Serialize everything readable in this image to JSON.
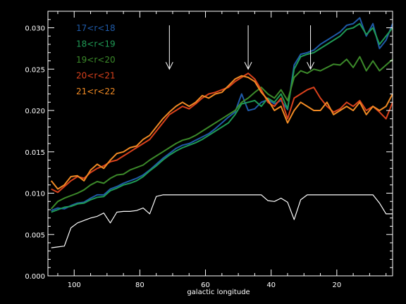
{
  "chart_data": {
    "type": "line",
    "title": "",
    "xlabel": "galactic longitude",
    "ylabel": "",
    "xlim": [
      108,
      3
    ],
    "ylim": [
      0.0,
      0.032
    ],
    "x_ticks": [
      100,
      80,
      60,
      40,
      20
    ],
    "x_tick_labels": [
      "100",
      "80",
      "60",
      "40",
      "20"
    ],
    "y_ticks": [
      0.0,
      0.005,
      0.01,
      0.015,
      0.02,
      0.025,
      0.03
    ],
    "y_tick_labels": [
      "0.000",
      "0.005",
      "0.010",
      "0.015",
      "0.020",
      "0.025",
      "0.030"
    ],
    "grid": false,
    "legend_position": "top-left",
    "background": "#000000",
    "foreground": "#ffffff",
    "arrows_at_x": [
      71,
      47,
      28
    ],
    "arrows_y_range": [
      0.0303,
      0.025
    ],
    "x": [
      107,
      105,
      103,
      101,
      99,
      97,
      95,
      93,
      91,
      89,
      87,
      85,
      83,
      81,
      79,
      77,
      75,
      73,
      71,
      69,
      67,
      65,
      63,
      61,
      59,
      57,
      55,
      53,
      51,
      49,
      47,
      45,
      43,
      41,
      39,
      37,
      35,
      33,
      31,
      29,
      27,
      25,
      23,
      21,
      19,
      17,
      15,
      13,
      11,
      9,
      7,
      5,
      3
    ],
    "series": [
      {
        "name": "17<r<18",
        "color": "#1f5aa8",
        "values": [
          0.0079,
          0.0082,
          0.0081,
          0.0085,
          0.0088,
          0.0089,
          0.0094,
          0.0098,
          0.0098,
          0.0105,
          0.0108,
          0.0112,
          0.0115,
          0.0118,
          0.0122,
          0.0128,
          0.0135,
          0.0142,
          0.0148,
          0.0154,
          0.0158,
          0.016,
          0.0164,
          0.0168,
          0.0172,
          0.0178,
          0.0185,
          0.0192,
          0.0198,
          0.022,
          0.02,
          0.0202,
          0.021,
          0.0213,
          0.0208,
          0.0212,
          0.0201,
          0.0255,
          0.0268,
          0.027,
          0.0273,
          0.028,
          0.0285,
          0.029,
          0.0295,
          0.0303,
          0.0305,
          0.0312,
          0.029,
          0.0305,
          0.0275,
          0.0285,
          0.0305
        ]
      },
      {
        "name": "18<r<19",
        "color": "#1f9a55",
        "values": [
          0.0077,
          0.008,
          0.0083,
          0.0084,
          0.0087,
          0.0088,
          0.0092,
          0.0095,
          0.0096,
          0.0103,
          0.0106,
          0.011,
          0.0112,
          0.0115,
          0.012,
          0.0127,
          0.0133,
          0.014,
          0.0146,
          0.0151,
          0.0155,
          0.0158,
          0.0161,
          0.0165,
          0.017,
          0.0175,
          0.018,
          0.0185,
          0.0195,
          0.0208,
          0.021,
          0.0212,
          0.0205,
          0.0215,
          0.021,
          0.022,
          0.0202,
          0.025,
          0.0265,
          0.0268,
          0.027,
          0.0275,
          0.028,
          0.0285,
          0.029,
          0.0298,
          0.03,
          0.0305,
          0.0292,
          0.03,
          0.028,
          0.029,
          0.03
        ]
      },
      {
        "name": "19<r<20",
        "color": "#3c8a2a",
        "values": [
          0.0081,
          0.009,
          0.0094,
          0.0097,
          0.01,
          0.0104,
          0.011,
          0.0114,
          0.0112,
          0.0118,
          0.0122,
          0.0123,
          0.0128,
          0.0131,
          0.0134,
          0.014,
          0.0145,
          0.015,
          0.0155,
          0.016,
          0.0164,
          0.0166,
          0.017,
          0.0175,
          0.018,
          0.0185,
          0.019,
          0.0195,
          0.02,
          0.021,
          0.0215,
          0.0222,
          0.0228,
          0.022,
          0.0215,
          0.0225,
          0.0212,
          0.024,
          0.0248,
          0.0245,
          0.025,
          0.0248,
          0.0252,
          0.0256,
          0.0255,
          0.0262,
          0.0252,
          0.0265,
          0.0248,
          0.026,
          0.0248,
          0.0255,
          0.0262
        ]
      },
      {
        "name": "20<r<21",
        "color": "#d9411c",
        "values": [
          0.0105,
          0.0101,
          0.0108,
          0.0115,
          0.012,
          0.0118,
          0.0125,
          0.013,
          0.0133,
          0.0138,
          0.014,
          0.0145,
          0.015,
          0.0155,
          0.016,
          0.0165,
          0.0175,
          0.0185,
          0.0195,
          0.02,
          0.0205,
          0.0202,
          0.0208,
          0.0215,
          0.022,
          0.0222,
          0.0225,
          0.0228,
          0.0235,
          0.024,
          0.0245,
          0.0238,
          0.0225,
          0.021,
          0.0205,
          0.0215,
          0.019,
          0.0215,
          0.022,
          0.0225,
          0.0228,
          0.0215,
          0.0205,
          0.0198,
          0.0202,
          0.021,
          0.0205,
          0.0212,
          0.02,
          0.0205,
          0.0198,
          0.019,
          0.021
        ]
      },
      {
        "name": "21<r<22",
        "color": "#f08a24",
        "values": [
          0.0115,
          0.0105,
          0.011,
          0.012,
          0.0121,
          0.0115,
          0.0128,
          0.0135,
          0.013,
          0.014,
          0.0148,
          0.015,
          0.0155,
          0.0157,
          0.0165,
          0.017,
          0.018,
          0.019,
          0.0198,
          0.0205,
          0.021,
          0.0205,
          0.021,
          0.0218,
          0.0215,
          0.022,
          0.0222,
          0.023,
          0.0238,
          0.0242,
          0.024,
          0.0235,
          0.0222,
          0.0213,
          0.02,
          0.0205,
          0.0185,
          0.02,
          0.021,
          0.0205,
          0.02,
          0.02,
          0.021,
          0.0195,
          0.02,
          0.0205,
          0.02,
          0.021,
          0.0195,
          0.0205,
          0.02,
          0.0205,
          0.022
        ]
      },
      {
        "name": "",
        "color": "#ffffff",
        "values": [
          0.0034,
          0.0035,
          0.0036,
          0.0058,
          0.0064,
          0.0067,
          0.007,
          0.0072,
          0.0076,
          0.0064,
          0.0077,
          0.0078,
          0.0078,
          0.0079,
          0.0082,
          0.0075,
          0.0096,
          0.0098,
          0.0098,
          0.0098,
          0.0098,
          0.0098,
          0.0098,
          0.0098,
          0.0098,
          0.0098,
          0.0098,
          0.0098,
          0.0098,
          0.0098,
          0.0098,
          0.0098,
          0.0098,
          0.0091,
          0.009,
          0.0094,
          0.0089,
          0.0068,
          0.0092,
          0.0098,
          0.0098,
          0.0098,
          0.0098,
          0.0098,
          0.0098,
          0.0098,
          0.0098,
          0.0098,
          0.0098,
          0.0098,
          0.0088,
          0.0075,
          0.0075
        ]
      }
    ]
  }
}
